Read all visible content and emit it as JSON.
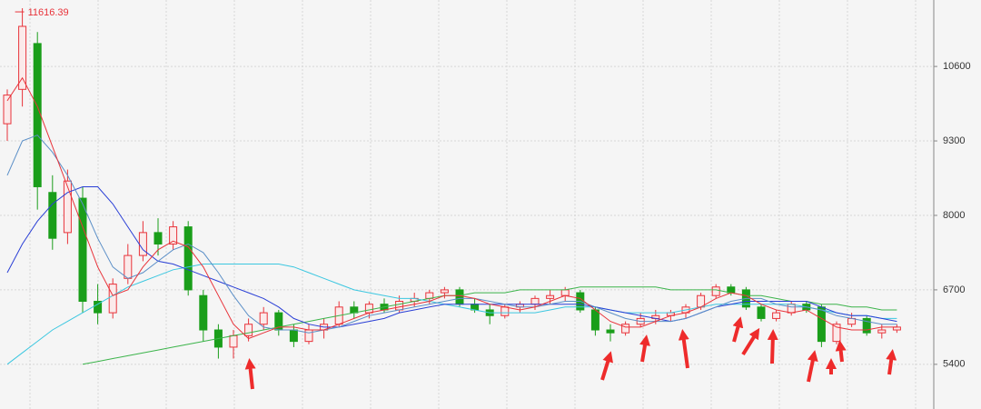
{
  "chart_data": {
    "type": "candlestick",
    "max_label": "11616.39",
    "up_color": "#e8333a",
    "down_color": "#1a9e1a",
    "ylim": [
      4620,
      11760
    ],
    "yticks": [
      5400,
      6700,
      8000,
      9300,
      10600
    ],
    "grid": true,
    "open": [
      9600,
      10200,
      11000,
      8400,
      7700,
      8300,
      6500,
      6300,
      6900,
      7300,
      7700,
      7500,
      7800,
      6600,
      6000,
      5700,
      5900,
      6100,
      6300,
      6000,
      5800,
      6000,
      6100,
      6400,
      6300,
      6450,
      6350,
      6500,
      6550,
      6650,
      6700,
      6450,
      6350,
      6250,
      6400,
      6450,
      6550,
      6600,
      6650,
      6350,
      6000,
      5950,
      6100,
      6200,
      6250,
      6300,
      6400,
      6600,
      6750,
      6700,
      6400,
      6200,
      6300,
      6450,
      6400,
      5800,
      6100,
      6200,
      5950,
      6000
    ],
    "high": [
      10200,
      11616.39,
      11200,
      8700,
      8800,
      8500,
      6800,
      6900,
      7500,
      7900,
      7950,
      7900,
      7900,
      6700,
      6100,
      6000,
      6200,
      6400,
      6350,
      6100,
      6100,
      6200,
      6500,
      6500,
      6500,
      6550,
      6600,
      6650,
      6700,
      6750,
      6750,
      6550,
      6450,
      6450,
      6500,
      6600,
      6700,
      6750,
      6700,
      6400,
      6100,
      6150,
      6300,
      6350,
      6350,
      6450,
      6650,
      6800,
      6800,
      6750,
      6450,
      6350,
      6500,
      6500,
      6450,
      6150,
      6300,
      6250,
      6100,
      6100
    ],
    "low": [
      9300,
      9900,
      8100,
      7400,
      7500,
      6300,
      6100,
      6200,
      6800,
      7200,
      7300,
      7400,
      6600,
      5800,
      5500,
      5500,
      5800,
      6000,
      5900,
      5700,
      5750,
      5850,
      6050,
      6200,
      6200,
      6300,
      6300,
      6400,
      6450,
      6550,
      6400,
      6300,
      6100,
      6200,
      6300,
      6350,
      6450,
      6500,
      6300,
      5900,
      5800,
      5900,
      6050,
      6100,
      6150,
      6200,
      6350,
      6550,
      6600,
      6350,
      6150,
      6150,
      6250,
      6300,
      5700,
      5750,
      6050,
      5900,
      5850,
      5950
    ],
    "close": [
      10100,
      11300,
      8500,
      7600,
      8600,
      6500,
      6300,
      6800,
      7300,
      7700,
      7500,
      7800,
      6700,
      6000,
      5700,
      5900,
      6100,
      6300,
      6000,
      5800,
      6000,
      6100,
      6400,
      6300,
      6450,
      6350,
      6500,
      6550,
      6650,
      6700,
      6450,
      6350,
      6250,
      6400,
      6450,
      6550,
      6600,
      6700,
      6350,
      6000,
      5950,
      6100,
      6200,
      6250,
      6300,
      6400,
      6600,
      6750,
      6650,
      6400,
      6200,
      6300,
      6450,
      6350,
      5800,
      6100,
      6200,
      5950,
      6000,
      6050
    ],
    "series": [
      {
        "color": "#3cb44b",
        "values": [
          null,
          null,
          null,
          null,
          null,
          5400,
          5450,
          5500,
          5550,
          5600,
          5650,
          5700,
          5750,
          5800,
          5850,
          5900,
          5950,
          6000,
          6050,
          6100,
          6150,
          6200,
          6250,
          6300,
          6350,
          6400,
          6450,
          6500,
          6550,
          6600,
          6600,
          6650,
          6650,
          6650,
          6700,
          6700,
          6700,
          6700,
          6750,
          6750,
          6750,
          6750,
          6750,
          6750,
          6700,
          6700,
          6700,
          6700,
          6650,
          6600,
          6600,
          6550,
          6500,
          6500,
          6450,
          6450,
          6400,
          6400,
          6350,
          6350
        ]
      },
      {
        "color": "#3cc7e0",
        "values": [
          5400,
          5600,
          5800,
          6000,
          6150,
          6300,
          6450,
          6600,
          6750,
          6850,
          6950,
          7050,
          7100,
          7150,
          7150,
          7150,
          7150,
          7150,
          7150,
          7100,
          7000,
          6900,
          6800,
          6700,
          6650,
          6600,
          6550,
          6550,
          6500,
          6450,
          6400,
          6350,
          6300,
          6300,
          6300,
          6300,
          6350,
          6400,
          6400,
          6400,
          6350,
          6300,
          6300,
          6300,
          6300,
          6350,
          6400,
          6450,
          6450,
          6450,
          6450,
          6450,
          6450,
          6400,
          6350,
          6300,
          6250,
          6250,
          6200,
          6200
        ]
      },
      {
        "color": "#2a3fd6",
        "values": [
          7000,
          7500,
          7900,
          8200,
          8400,
          8500,
          8500,
          8200,
          7800,
          7400,
          7200,
          7150,
          7050,
          6950,
          6850,
          6750,
          6650,
          6550,
          6400,
          6200,
          6100,
          6050,
          6050,
          6100,
          6150,
          6200,
          6300,
          6350,
          6400,
          6450,
          6450,
          6450,
          6450,
          6450,
          6450,
          6450,
          6450,
          6450,
          6450,
          6400,
          6350,
          6300,
          6250,
          6200,
          6150,
          6200,
          6300,
          6400,
          6450,
          6500,
          6500,
          6500,
          6500,
          6500,
          6400,
          6300,
          6250,
          6250,
          6200,
          6150
        ]
      },
      {
        "color": "#5b8fc7",
        "values": [
          8700,
          9300,
          9400,
          9100,
          8700,
          8200,
          7600,
          7100,
          6900,
          7000,
          7200,
          7400,
          7500,
          7350,
          7000,
          6600,
          6250,
          6050,
          6000,
          6000,
          5950,
          6000,
          6050,
          6150,
          6250,
          6300,
          6350,
          6400,
          6450,
          6500,
          6550,
          6550,
          6500,
          6450,
          6400,
          6400,
          6450,
          6500,
          6500,
          6400,
          6300,
          6200,
          6150,
          6150,
          6150,
          6200,
          6300,
          6400,
          6500,
          6550,
          6550,
          6450,
          6400,
          6400,
          6350,
          6250,
          6200,
          6150,
          6100,
          6100
        ]
      },
      {
        "color": "#e8333a",
        "values": [
          10000,
          10400,
          9900,
          9200,
          8500,
          7800,
          7100,
          6600,
          6700,
          7100,
          7400,
          7550,
          7450,
          7100,
          6600,
          6100,
          5850,
          5950,
          6050,
          6050,
          6000,
          6000,
          6100,
          6200,
          6300,
          6350,
          6400,
          6450,
          6500,
          6600,
          6600,
          6550,
          6450,
          6400,
          6350,
          6400,
          6500,
          6600,
          6550,
          6350,
          6150,
          6050,
          6050,
          6150,
          6250,
          6300,
          6400,
          6550,
          6650,
          6600,
          6450,
          6350,
          6300,
          6350,
          6200,
          6050,
          6000,
          6000,
          6050,
          6050
        ]
      }
    ]
  }
}
